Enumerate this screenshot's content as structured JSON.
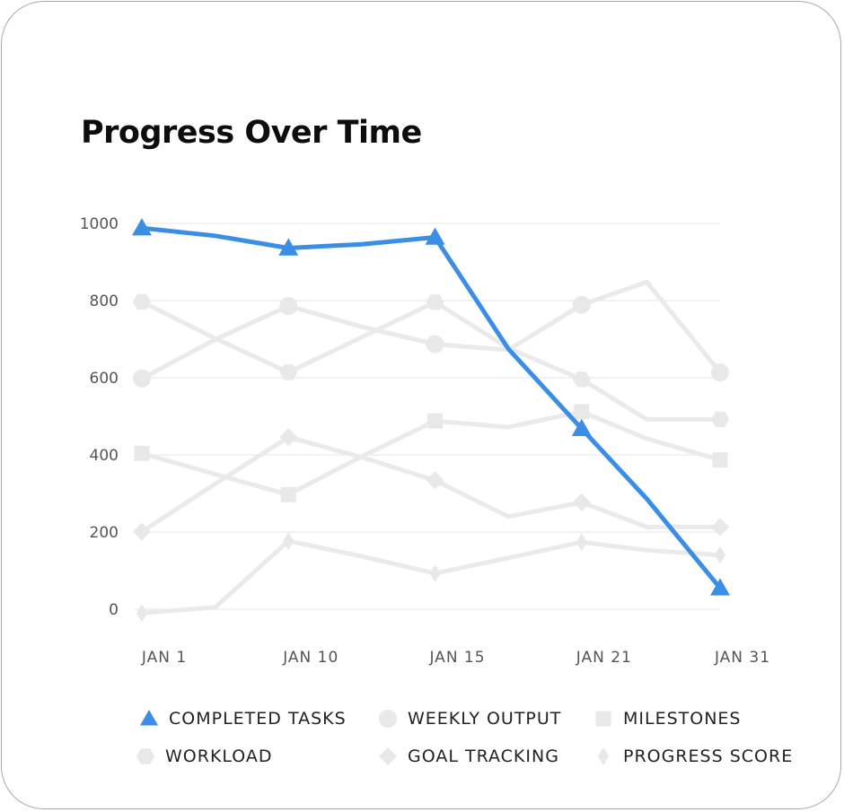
{
  "chart_data": {
    "type": "line",
    "title": "Progress Over Time",
    "categories": [
      "JAN 1",
      "JAN 10",
      "JAN 15",
      "JAN 21",
      "JAN 31"
    ],
    "x": [
      1,
      5.5,
      10,
      14.5,
      19,
      23.5,
      28,
      32,
      36.5
    ],
    "ylim": [
      0,
      1000
    ],
    "yticks": [
      "0",
      "200",
      "400",
      "600",
      "800",
      "1000"
    ],
    "grid": true,
    "legend_position": "bottom",
    "series": [
      {
        "name": "COMPLETED TASKS",
        "marker": "triangle",
        "color": "#3a8ee6",
        "highlight": true,
        "values": [
          988,
          968,
          936,
          946,
          964,
          675,
          468,
          286,
          55
        ],
        "marker_idx": [
          0,
          2,
          4,
          6,
          8
        ]
      },
      {
        "name": "WEEKLY OUTPUT",
        "marker": "circle",
        "color": "#eaeaea",
        "highlight": false,
        "values": [
          598,
          699,
          786,
          732,
          687,
          672,
          789,
          848,
          614
        ],
        "marker_idx": [
          0,
          2,
          4,
          6,
          8
        ]
      },
      {
        "name": "MILESTONES",
        "marker": "square",
        "color": "#eaeaea",
        "highlight": false,
        "values": [
          404,
          350,
          297,
          396,
          488,
          472,
          512,
          442,
          387
        ],
        "marker_idx": [
          0,
          2,
          4,
          6,
          8
        ]
      },
      {
        "name": "WORKLOAD",
        "marker": "hexagon",
        "color": "#eaeaea",
        "highlight": false,
        "values": [
          797,
          702,
          614,
          705,
          796,
          677,
          596,
          492,
          492
        ],
        "marker_idx": [
          0,
          2,
          4,
          6,
          8
        ]
      },
      {
        "name": "GOAL TRACKING",
        "marker": "diamond",
        "color": "#eaeaea",
        "highlight": false,
        "values": [
          201,
          325,
          446,
          394,
          334,
          240,
          277,
          213,
          213
        ],
        "marker_idx": [
          0,
          2,
          4,
          6,
          8
        ]
      },
      {
        "name": "PROGRESS SCORE",
        "marker": "thin-diamond",
        "color": "#eaeaea",
        "highlight": false,
        "values": [
          -10,
          5,
          177,
          137,
          93,
          133,
          174,
          153,
          140
        ],
        "marker_idx": [
          0,
          2,
          4,
          6,
          8
        ]
      }
    ]
  }
}
